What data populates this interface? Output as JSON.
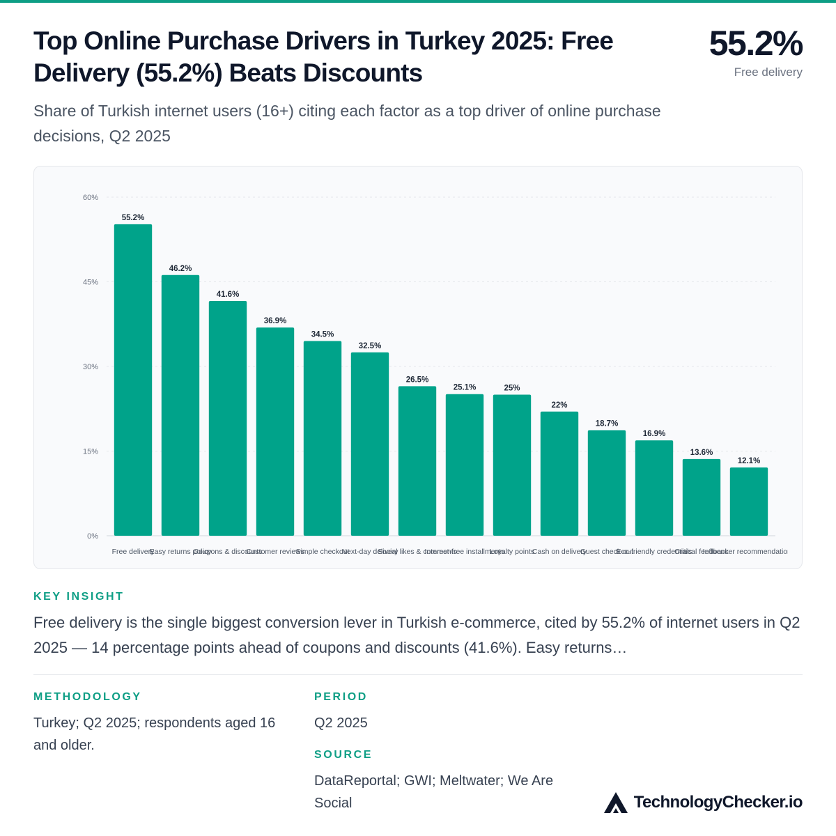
{
  "header": {
    "title": "Top Online Purchase Drivers in Turkey 2025: Free Delivery (55.2%) Beats Discounts",
    "subtitle": "Share of Turkish internet users (16+) citing each factor as a top driver of online purchase decisions, Q2 2025",
    "kpi_value": "55.2%",
    "kpi_label": "Free delivery"
  },
  "chart_data": {
    "type": "bar",
    "categories": [
      "Free delivery",
      "Easy returns policy",
      "Coupons & discounts",
      "Customer reviews",
      "Simple checkout",
      "Next-day delivery",
      "Social likes & comments",
      "Interest-free installments",
      "Loyalty points",
      "Cash on delivery",
      "Guest check-out",
      "Eco-friendly credentials",
      "Critical feedback",
      "Influencer recommendations"
    ],
    "values": [
      55.2,
      46.2,
      41.6,
      36.9,
      34.5,
      32.5,
      26.5,
      25.1,
      25,
      22,
      18.7,
      16.9,
      13.6,
      12.1
    ],
    "value_labels": [
      "55.2%",
      "46.2%",
      "41.6%",
      "36.9%",
      "34.5%",
      "32.5%",
      "26.5%",
      "25.1%",
      "25%",
      "22%",
      "18.7%",
      "16.9%",
      "13.6%",
      "12.1%"
    ],
    "ylim": [
      0,
      60
    ],
    "yticks": [
      0,
      15,
      30,
      45,
      60
    ],
    "ytick_labels": [
      "0%",
      "15%",
      "30%",
      "45%",
      "60%"
    ],
    "grid": true,
    "bar_color": "#00a38a",
    "xlabel": "",
    "ylabel": ""
  },
  "insight": {
    "label": "KEY INSIGHT",
    "text": "Free delivery is the single biggest conversion lever in Turkish e-commerce, cited by 55.2% of internet users in Q2 2025 — 14 percentage points ahead of coupons and discounts (41.6%). Easy returns…"
  },
  "methodology": {
    "label": "METHODOLOGY",
    "text": "Turkey; Q2 2025; respondents aged 16 and older."
  },
  "period": {
    "label": "PERIOD",
    "text": "Q2 2025"
  },
  "source": {
    "label": "SOURCE",
    "text": "DataReportal; GWI; Meltwater; We Are Social"
  },
  "brand": {
    "name": "TechnologyChecker.io",
    "icon": "triangle-logo-icon"
  },
  "colors": {
    "accent": "#0e9e85",
    "bar": "#00a38a",
    "title": "#0f172a"
  }
}
